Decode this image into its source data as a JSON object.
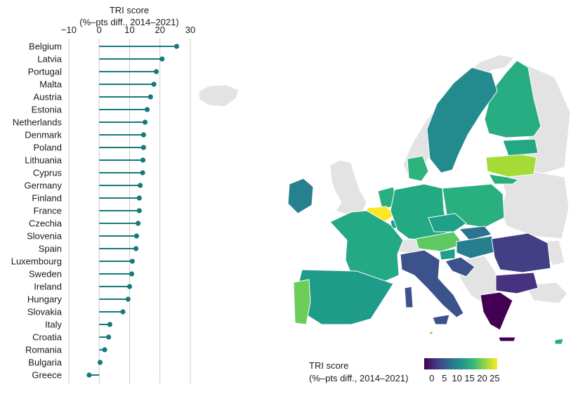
{
  "chart_data": {
    "type": "lollipop",
    "xlabel_line1": "TRI score",
    "xlabel_line2": "(%–pts diff., 2014–2021)",
    "xlim": [
      -10,
      30
    ],
    "xticks": [
      -10,
      0,
      10,
      20,
      30
    ],
    "tick_labels": [
      "−10",
      "0",
      "10",
      "20",
      "30"
    ],
    "marker_color": "#17797d",
    "categories": [
      "Belgium",
      "Latvia",
      "Portugal",
      "Malta",
      "Austria",
      "Estonia",
      "Netherlands",
      "Denmark",
      "Poland",
      "Lithuania",
      "Cyprus",
      "Germany",
      "Finland",
      "France",
      "Czechia",
      "Slovenia",
      "Spain",
      "Luxembourg",
      "Sweden",
      "Ireland",
      "Hungary",
      "Slovakia",
      "Italy",
      "Croatia",
      "Romania",
      "Bulgaria",
      "Greece"
    ],
    "values": [
      25.5,
      20.7,
      18.8,
      18.0,
      16.9,
      15.8,
      15.1,
      14.6,
      14.6,
      14.4,
      14.3,
      13.5,
      13.2,
      13.2,
      12.8,
      12.3,
      12.1,
      10.9,
      10.7,
      10.0,
      9.5,
      7.8,
      3.5,
      3.1,
      1.8,
      0.3,
      -3.3
    ],
    "colorbar": {
      "title_line1": "TRI score",
      "title_line2": "(%–pts diff., 2014–2021)",
      "range": [
        -3,
        26
      ],
      "ticks": [
        0,
        5,
        10,
        15,
        20,
        25
      ],
      "tick_labels": [
        "0",
        "5",
        "10",
        "15",
        "20",
        "25"
      ],
      "colors": [
        "#440154",
        "#443983",
        "#31688e",
        "#21918c",
        "#35b779",
        "#90d743",
        "#fde725"
      ]
    },
    "map_palette": {
      "nodata": "#e3e3e3",
      "border": "#ffffff"
    }
  }
}
